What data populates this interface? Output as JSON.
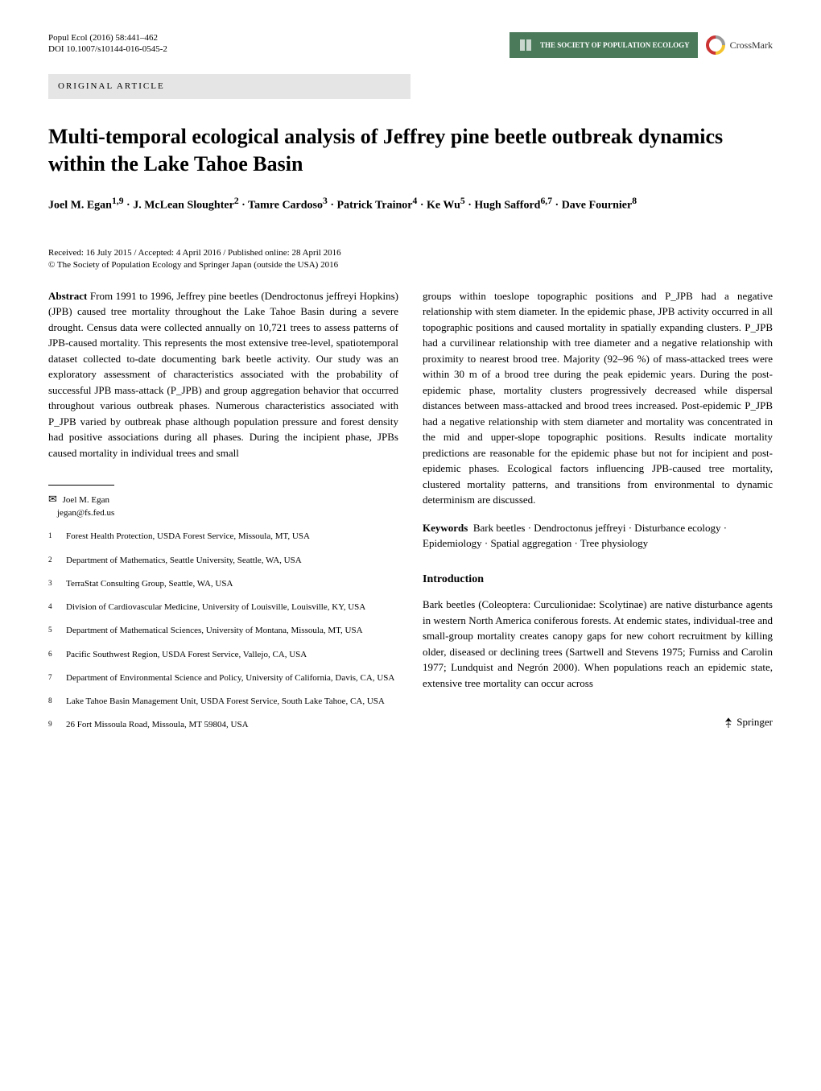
{
  "header": {
    "journal_ref": "Popul Ecol (2016) 58:441–462",
    "doi": "DOI 10.1007/s10144-016-0545-2",
    "society_text": "THE SOCIETY OF POPULATION ECOLOGY",
    "crossmark_text": "CrossMark",
    "article_type": "ORIGINAL ARTICLE"
  },
  "title": "Multi-temporal ecological analysis of Jeffrey pine beetle outbreak dynamics within the Lake Tahoe Basin",
  "authors_html": "Joel M. Egan<sup>1,9</sup> · J. McLean Sloughter<sup>2</sup> · Tamre Cardoso<sup>3</sup> · Patrick Trainor<sup>4</sup> · Ke Wu<sup>5</sup> · Hugh Safford<sup>6,7</sup> · Dave Fournier<sup>8</sup>",
  "dates": {
    "received": "Received: 16 July 2015 / Accepted: 4 April 2016 / Published online: 28 April 2016",
    "copyright": "© The Society of Population Ecology and Springer Japan (outside the USA) 2016"
  },
  "abstract": {
    "label": "Abstract",
    "left": "From 1991 to 1996, Jeffrey pine beetles (Dendroctonus jeffreyi Hopkins) (JPB) caused tree mortality throughout the Lake Tahoe Basin during a severe drought. Census data were collected annually on 10,721 trees to assess patterns of JPB-caused mortality. This represents the most extensive tree-level, spatiotemporal dataset collected to-date documenting bark beetle activity. Our study was an exploratory assessment of characteristics associated with the probability of successful JPB mass-attack (P_JPB) and group aggregation behavior that occurred throughout various outbreak phases. Numerous characteristics associated with P_JPB varied by outbreak phase although population pressure and forest density had positive associations during all phases. During the incipient phase, JPBs caused mortality in individual trees and small",
    "right": "groups within toeslope topographic positions and P_JPB had a negative relationship with stem diameter. In the epidemic phase, JPB activity occurred in all topographic positions and caused mortality in spatially expanding clusters. P_JPB had a curvilinear relationship with tree diameter and a negative relationship with proximity to nearest brood tree. Majority (92–96 %) of mass-attacked trees were within 30 m of a brood tree during the peak epidemic years. During the post-epidemic phase, mortality clusters progressively decreased while dispersal distances between mass-attacked and brood trees increased. Post-epidemic P_JPB had a negative relationship with stem diameter and mortality was concentrated in the mid and upper-slope topographic positions. Results indicate mortality predictions are reasonable for the epidemic phase but not for incipient and post-epidemic phases. Ecological factors influencing JPB-caused tree mortality, clustered mortality patterns, and transitions from environmental to dynamic determinism are discussed."
  },
  "keywords": {
    "label": "Keywords",
    "text": "Bark beetles · Dendroctonus jeffreyi · Disturbance ecology · Epidemiology · Spatial aggregation · Tree physiology"
  },
  "introduction": {
    "heading": "Introduction",
    "text": "Bark beetles (Coleoptera: Curculionidae: Scolytinae) are native disturbance agents in western North America coniferous forests. At endemic states, individual-tree and small-group mortality creates canopy gaps for new cohort recruitment by killing older, diseased or declining trees (Sartwell and Stevens 1975; Furniss and Carolin 1977; Lundquist and Negrón 2000). When populations reach an epidemic state, extensive tree mortality can occur across"
  },
  "corresponding": {
    "name": "Joel M. Egan",
    "email": "jegan@fs.fed.us"
  },
  "affiliations": [
    {
      "num": "1",
      "text": "Forest Health Protection, USDA Forest Service, Missoula, MT, USA"
    },
    {
      "num": "2",
      "text": "Department of Mathematics, Seattle University, Seattle, WA, USA"
    },
    {
      "num": "3",
      "text": "TerraStat Consulting Group, Seattle, WA, USA"
    },
    {
      "num": "4",
      "text": "Division of Cardiovascular Medicine, University of Louisville, Louisville, KY, USA"
    },
    {
      "num": "5",
      "text": "Department of Mathematical Sciences, University of Montana, Missoula, MT, USA"
    },
    {
      "num": "6",
      "text": "Pacific Southwest Region, USDA Forest Service, Vallejo, CA, USA"
    },
    {
      "num": "7",
      "text": "Department of Environmental Science and Policy, University of California, Davis, CA, USA"
    },
    {
      "num": "8",
      "text": "Lake Tahoe Basin Management Unit, USDA Forest Service, South Lake Tahoe, CA, USA"
    },
    {
      "num": "9",
      "text": "26 Fort Missoula Road, Missoula, MT 59804, USA"
    }
  ],
  "footer": {
    "publisher": "Springer"
  },
  "colors": {
    "society_bg": "#4a7a5a",
    "society_text": "#ffffff",
    "article_type_bg": "#e5e5e5",
    "body_text": "#000000",
    "background": "#ffffff"
  },
  "typography": {
    "title_fontsize": 26,
    "body_fontsize": 13,
    "header_fontsize": 11,
    "author_fontsize": 14
  }
}
